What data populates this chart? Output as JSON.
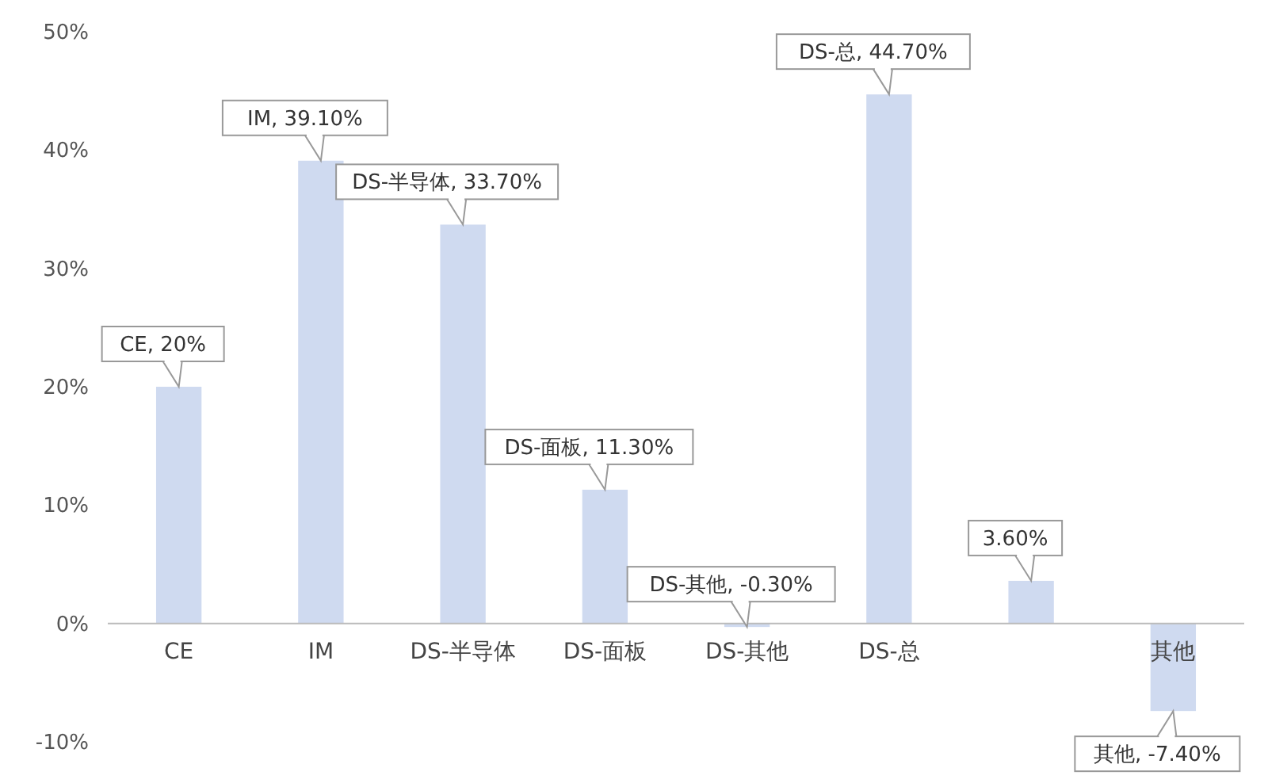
{
  "chart_data": {
    "type": "bar",
    "categories": [
      "CE",
      "IM",
      "DS-半导体",
      "DS-面板",
      "DS-其他",
      "DS-总",
      null,
      "其他"
    ],
    "values": [
      20,
      39.1,
      33.7,
      11.3,
      -0.3,
      44.7,
      3.6,
      -7.4
    ],
    "color": "#cfdaf0",
    "value_labels": [
      "CE, 20%",
      "IM, 39.10%",
      "DS-半导体, 33.70%",
      "DS-面板, 11.30%",
      "DS-其他, -0.30%",
      "DS-总, 44.70%",
      "3.60%",
      "其他, -7.40%"
    ],
    "ylim": [
      -10,
      50
    ],
    "yticks": [
      {
        "value": -10,
        "label": "-10%"
      },
      {
        "value": 0,
        "label": "0%"
      },
      {
        "value": 10,
        "label": "10%"
      },
      {
        "value": 20,
        "label": "20%"
      },
      {
        "value": 30,
        "label": "30%"
      },
      {
        "value": 40,
        "label": "40%"
      },
      {
        "value": 50,
        "label": "50%"
      }
    ],
    "grid": false
  }
}
